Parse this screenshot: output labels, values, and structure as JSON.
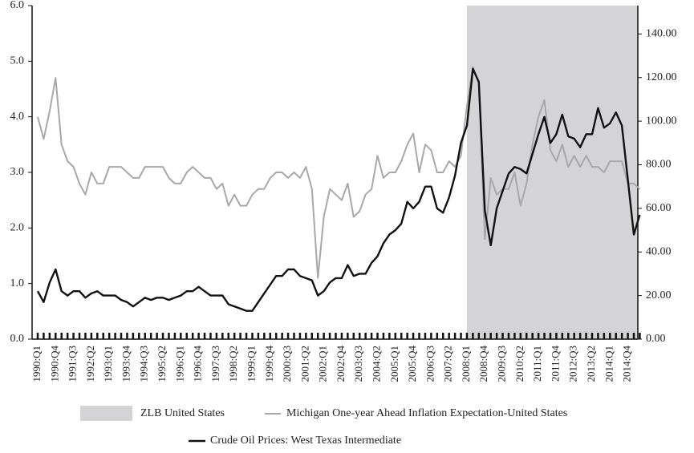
{
  "chart_data": {
    "type": "line",
    "categories": [
      "1990:Q1",
      null,
      null,
      "1990:Q4",
      null,
      null,
      "1991:Q3",
      null,
      null,
      "1992:Q2",
      null,
      null,
      "1993:Q1",
      null,
      null,
      "1993:Q4",
      null,
      null,
      "1994:Q3",
      null,
      null,
      "1995:Q2",
      null,
      null,
      "1996:Q1",
      null,
      null,
      "1996:Q4",
      null,
      null,
      "1997:Q3",
      null,
      null,
      "1998:Q2",
      null,
      null,
      "1999:Q1",
      null,
      null,
      "1999:Q4",
      null,
      null,
      "2000:Q3",
      null,
      null,
      "2001:Q2",
      null,
      null,
      "2002:Q1",
      null,
      null,
      "2002:Q4",
      null,
      null,
      "2003:Q3",
      null,
      null,
      "2004:Q2",
      null,
      null,
      "2005:Q1",
      null,
      null,
      "2005:Q4",
      null,
      null,
      "2006:Q3",
      null,
      null,
      "2007:Q2",
      null,
      null,
      "2008:Q1",
      null,
      null,
      "2008:Q4",
      null,
      null,
      "2009:Q3",
      null,
      null,
      "2010:Q2",
      null,
      null,
      "2011:Q1",
      null,
      null,
      "2011:Q4",
      null,
      null,
      "2012:Q3",
      null,
      null,
      "2013:Q2",
      null,
      null,
      "2014:Q1",
      null,
      null,
      "2014:Q4",
      null,
      null
    ],
    "shade": {
      "name": "ZLB United States",
      "start": "2008:Q1",
      "color": "#d4d4d6"
    },
    "series": [
      {
        "name": "Michigan One-year Ahead Inflation Expectation-United States",
        "color": "#a8a8a8",
        "axis": "y",
        "values": [
          4.0,
          3.6,
          4.1,
          4.7,
          3.5,
          3.2,
          3.1,
          2.8,
          2.6,
          3.0,
          2.8,
          2.8,
          3.1,
          3.1,
          3.1,
          3.0,
          2.9,
          2.9,
          3.1,
          3.1,
          3.1,
          3.1,
          2.9,
          2.8,
          2.8,
          3.0,
          3.1,
          3.0,
          2.9,
          2.9,
          2.7,
          2.8,
          2.4,
          2.6,
          2.4,
          2.4,
          2.6,
          2.7,
          2.7,
          2.9,
          3.0,
          3.0,
          2.9,
          3.0,
          2.9,
          3.1,
          2.7,
          1.1,
          2.2,
          2.7,
          2.6,
          2.5,
          2.8,
          2.2,
          2.3,
          2.6,
          2.7,
          3.3,
          2.9,
          3.0,
          3.0,
          3.2,
          3.5,
          3.7,
          3.0,
          3.5,
          3.4,
          3.0,
          3.0,
          3.2,
          3.1,
          3.3,
          4.2,
          4.9,
          4.6,
          1.8,
          2.9,
          2.6,
          2.7,
          2.7,
          3.0,
          2.4,
          2.8,
          3.5,
          4.0,
          4.3,
          3.4,
          3.2,
          3.5,
          3.1,
          3.3,
          3.1,
          3.3,
          3.1,
          3.1,
          3.0,
          3.2,
          3.2,
          3.2,
          2.8,
          2.8,
          2.7
        ]
      },
      {
        "name": "Crude Oil Prices: West Texas Intermediate",
        "color": "#111111",
        "axis": "y2",
        "values": [
          22,
          17,
          26,
          32,
          22,
          20,
          22,
          22,
          19,
          21,
          22,
          20,
          20,
          20,
          18,
          17,
          15,
          17,
          19,
          18,
          19,
          19,
          18,
          19,
          20,
          22,
          22,
          24,
          22,
          20,
          20,
          20,
          16,
          15,
          14,
          13,
          13,
          17,
          21,
          25,
          29,
          29,
          32,
          32,
          29,
          28,
          27,
          20,
          22,
          26,
          28,
          28,
          34,
          29,
          30,
          30,
          35,
          38,
          44,
          48,
          50,
          53,
          63,
          60,
          63,
          70,
          70,
          60,
          58,
          65,
          75,
          90,
          98,
          124,
          118,
          59,
          43,
          60,
          68,
          76,
          79,
          78,
          76,
          85,
          94,
          102,
          90,
          94,
          103,
          93,
          92,
          88,
          94,
          94,
          106,
          97,
          99,
          104,
          98,
          73,
          48,
          57
        ]
      }
    ],
    "ylim": [
      0,
      6
    ],
    "yticks": [
      {
        "value": 0,
        "label": "0.0"
      },
      {
        "value": 1,
        "label": "1.0"
      },
      {
        "value": 2,
        "label": "2.0"
      },
      {
        "value": 3,
        "label": "3.0"
      },
      {
        "value": 4,
        "label": "4.0"
      },
      {
        "value": 5,
        "label": "5.0"
      },
      {
        "value": 6,
        "label": "6.0"
      }
    ],
    "y2lim": [
      0,
      153
    ],
    "y2ticks": [
      {
        "value": 0,
        "label": "0.00"
      },
      {
        "value": 20,
        "label": "20.00"
      },
      {
        "value": 40,
        "label": "40.00"
      },
      {
        "value": 60,
        "label": "60.00"
      },
      {
        "value": 80,
        "label": "80.00"
      },
      {
        "value": 100,
        "label": "100.00"
      },
      {
        "value": 120,
        "label": "120.00"
      },
      {
        "value": 140,
        "label": "140.00"
      }
    ]
  }
}
